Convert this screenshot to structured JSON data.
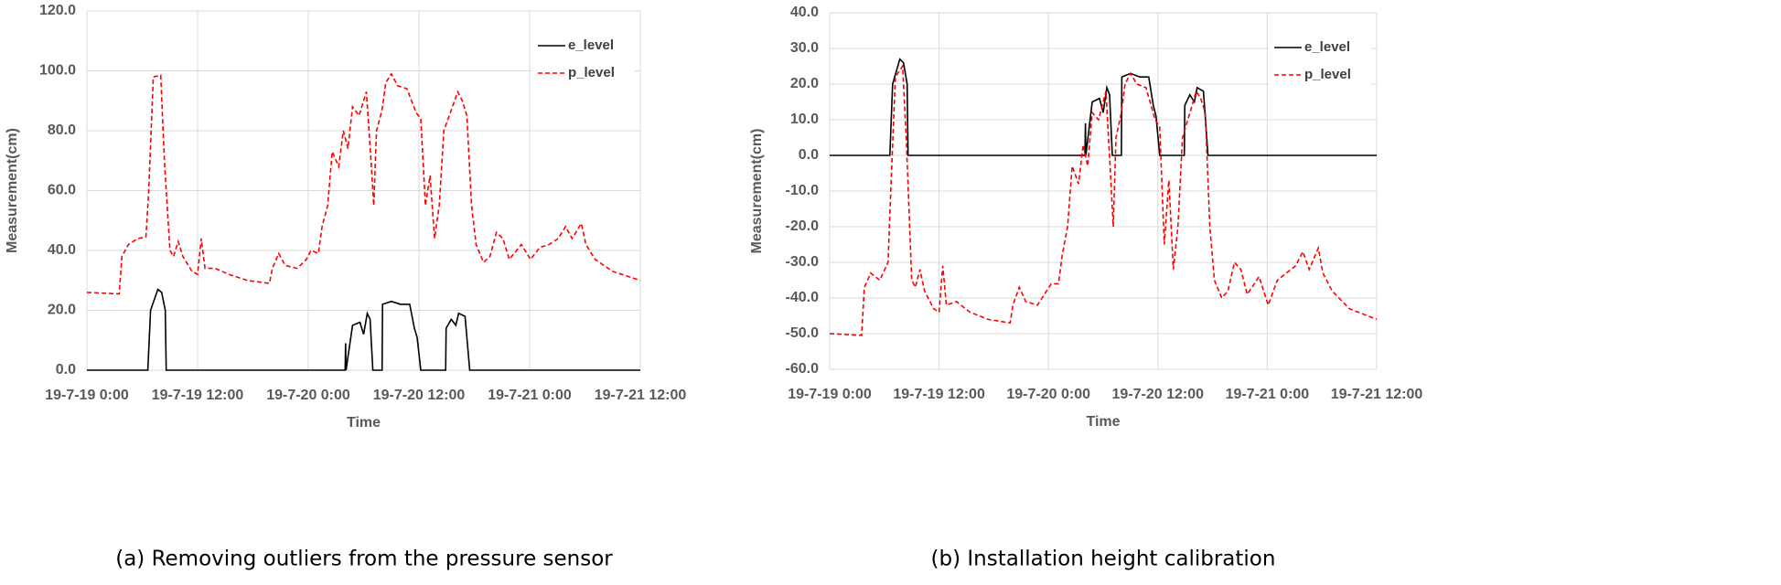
{
  "chart_data": [
    {
      "type": "line",
      "caption": "(a) Removing outliers from the pressure sensor",
      "xlabel": "Time",
      "ylabel": "Measurement(cm)",
      "xlim": [
        0,
        60
      ],
      "xticks": [
        {
          "value": 0,
          "label": "19-7-19 0:00"
        },
        {
          "value": 12,
          "label": "19-7-19 12:00"
        },
        {
          "value": 24,
          "label": "19-7-20 0:00"
        },
        {
          "value": 36,
          "label": "19-7-20 12:00"
        },
        {
          "value": 48,
          "label": "19-7-21 0:00"
        },
        {
          "value": 60,
          "label": "19-7-21 12:00"
        }
      ],
      "ylim": [
        0,
        120
      ],
      "yticks": [
        {
          "value": 0,
          "label": "0.0"
        },
        {
          "value": 20,
          "label": "20.0"
        },
        {
          "value": 40,
          "label": "40.0"
        },
        {
          "value": 60,
          "label": "60.0"
        },
        {
          "value": 80,
          "label": "80.0"
        },
        {
          "value": 100,
          "label": "100.0"
        },
        {
          "value": 120,
          "label": "120.0"
        }
      ],
      "grid": true,
      "legend": "upper right",
      "series": [
        {
          "name": "e_level",
          "color": "#000000",
          "dash": "solid",
          "x": [
            0,
            6.6,
            6.9,
            7.7,
            8.1,
            8.5,
            8.6,
            28,
            28.05,
            28.1,
            28.8,
            29.6,
            30,
            30.4,
            30.7,
            31,
            32,
            32.05,
            33,
            34,
            35,
            35.5,
            35.8,
            36.2,
            38.9,
            38.95,
            39.5,
            40,
            40.3,
            41,
            41.5,
            60
          ],
          "values": [
            0,
            0,
            20,
            27,
            26,
            20,
            0,
            0,
            9,
            0,
            15,
            16,
            12,
            19,
            17,
            0,
            0,
            22,
            23,
            22,
            22,
            14,
            11,
            0,
            0,
            14,
            17,
            15,
            19,
            18,
            0,
            0
          ]
        },
        {
          "name": "p_level",
          "color": "#ff0000",
          "dash": "dashed",
          "x": [
            0,
            3.5,
            3.8,
            4.5,
            5.5,
            6.4,
            6.7,
            7.2,
            8,
            8.4,
            9,
            9.4,
            9.9,
            10.4,
            11.4,
            12,
            12.4,
            12.8,
            13.9,
            15.4,
            17.4,
            19.8,
            20.1,
            20.8,
            21.5,
            22.8,
            23.8,
            24.3,
            25.1,
            25.5,
            26.1,
            26.6,
            27.3,
            27.8,
            28.3,
            28.8,
            29.5,
            30.3,
            30.8,
            31.1,
            31.4,
            32,
            32.4,
            33,
            33.7,
            34.7,
            35.7,
            36.2,
            36.7,
            37.2,
            37.7,
            38.2,
            38.7,
            39.4,
            40.2,
            40.7,
            41.2,
            41.7,
            42.2,
            43,
            43.7,
            44.4,
            45.1,
            45.8,
            47.1,
            48.1,
            49.1,
            50.1,
            51.1,
            51.9,
            52.6,
            53.6,
            54.1,
            55.1,
            57,
            60
          ],
          "values": [
            26,
            25.5,
            38,
            42,
            44,
            44.5,
            60,
            98,
            98.5,
            70,
            40,
            38,
            43,
            38,
            33,
            32,
            44,
            34,
            34,
            32,
            30,
            29,
            34,
            39,
            35,
            34,
            37,
            40,
            39,
            48,
            55,
            73,
            68,
            80,
            74,
            88,
            85,
            93,
            70,
            55,
            80,
            87,
            96,
            99,
            95,
            94,
            86,
            84,
            55,
            65,
            44,
            55,
            80,
            86,
            93,
            90,
            85,
            55,
            42,
            36,
            38,
            46,
            44,
            37,
            42,
            37,
            41,
            42,
            44,
            48,
            44,
            49,
            42,
            37,
            33,
            30
          ]
        }
      ]
    },
    {
      "type": "line",
      "caption": "(b) Installation height calibration",
      "xlabel": "Time",
      "ylabel": "Measurement(cm)",
      "xlim": [
        0,
        60
      ],
      "xticks": [
        {
          "value": 0,
          "label": "19-7-19 0:00"
        },
        {
          "value": 12,
          "label": "19-7-19 12:00"
        },
        {
          "value": 24,
          "label": "19-7-20 0:00"
        },
        {
          "value": 36,
          "label": "19-7-20 12:00"
        },
        {
          "value": 48,
          "label": "19-7-21 0:00"
        },
        {
          "value": 60,
          "label": "19-7-21 12:00"
        }
      ],
      "ylim": [
        -60,
        40
      ],
      "yticks": [
        {
          "value": -60,
          "label": "-60.0"
        },
        {
          "value": -50,
          "label": "-50.0"
        },
        {
          "value": -40,
          "label": "-40.0"
        },
        {
          "value": -30,
          "label": "-30.0"
        },
        {
          "value": -20,
          "label": "-20.0"
        },
        {
          "value": -10,
          "label": "-10.0"
        },
        {
          "value": 0,
          "label": "0.0"
        },
        {
          "value": 10,
          "label": "10.0"
        },
        {
          "value": 20,
          "label": "20.0"
        },
        {
          "value": 30,
          "label": "30.0"
        },
        {
          "value": 40,
          "label": "40.0"
        }
      ],
      "grid": true,
      "legend": "upper right",
      "series": [
        {
          "name": "e_level",
          "color": "#000000",
          "dash": "solid",
          "x": [
            0,
            6.6,
            6.9,
            7.7,
            8.1,
            8.5,
            8.6,
            28,
            28.05,
            28.1,
            28.8,
            29.6,
            30,
            30.4,
            30.7,
            31,
            32,
            32.05,
            33,
            34,
            35,
            35.5,
            35.8,
            36.2,
            38.9,
            38.95,
            39.5,
            40,
            40.3,
            41,
            41.5,
            60
          ],
          "values": [
            0,
            0,
            20,
            27,
            26,
            20,
            0,
            0,
            9,
            0,
            15,
            16,
            12,
            19,
            17,
            0,
            0,
            22,
            23,
            22,
            22,
            14,
            11,
            0,
            0,
            14,
            17,
            15,
            19,
            18,
            0,
            0
          ]
        },
        {
          "name": "p_level",
          "color": "#ff0000",
          "dash": "dashed",
          "x": [
            0,
            3.5,
            3.8,
            4.5,
            5.5,
            6.4,
            6.7,
            7.2,
            8,
            8.4,
            9,
            9.4,
            9.9,
            10.4,
            11.4,
            12,
            12.4,
            12.8,
            13.9,
            15.4,
            17.4,
            19.8,
            20.1,
            20.8,
            21.5,
            22.8,
            23.8,
            24.3,
            25.1,
            25.5,
            26.1,
            26.6,
            27.3,
            27.8,
            28.3,
            28.8,
            29.5,
            30.3,
            30.8,
            31.1,
            31.4,
            32,
            32.4,
            33,
            33.7,
            34.7,
            35.7,
            36.2,
            36.7,
            37.2,
            37.7,
            38.2,
            38.7,
            39.4,
            40.2,
            40.7,
            41.2,
            41.7,
            42.2,
            43,
            43.7,
            44.4,
            45.1,
            45.8,
            47.1,
            48.1,
            49.1,
            50.1,
            51.1,
            51.9,
            52.6,
            53.6,
            54.1,
            55.1,
            57,
            60
          ],
          "values": [
            -50,
            -50.5,
            -37,
            -33,
            -35,
            -30,
            -10,
            22,
            25,
            5,
            -35,
            -37,
            -32,
            -38,
            -43,
            -44,
            -31,
            -42,
            -41,
            -44,
            -46,
            -47,
            -42,
            -37,
            -41,
            -42,
            -38,
            -36,
            -36,
            -28,
            -20,
            -3,
            -8,
            3,
            -3,
            12,
            10,
            18,
            -5,
            -20,
            5,
            12,
            20,
            23,
            20,
            19,
            10,
            8,
            -25,
            -7,
            -32,
            -20,
            5,
            11,
            18,
            16,
            12,
            -20,
            -35,
            -40,
            -38,
            -30,
            -32,
            -39,
            -34,
            -42,
            -35,
            -33,
            -31,
            -27,
            -32,
            -26,
            -33,
            -38,
            -43,
            -46
          ]
        }
      ]
    }
  ]
}
